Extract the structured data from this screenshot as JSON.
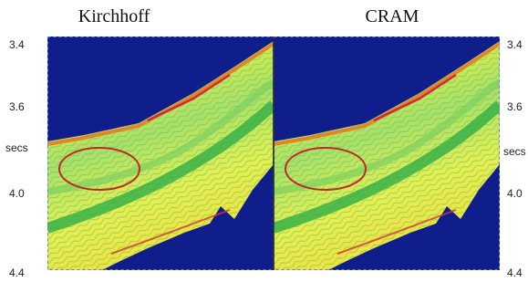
{
  "panels": [
    {
      "title": "Kirchhoff"
    },
    {
      "title": "CRAM"
    }
  ],
  "left_axis": {
    "ticks": [
      "3.4",
      "3.6",
      "4.0",
      "4.4"
    ],
    "label": "secs"
  },
  "right_axis": {
    "ticks": [
      "3.4",
      "3.6",
      "4.0",
      "4.4"
    ],
    "label": "secs"
  }
}
